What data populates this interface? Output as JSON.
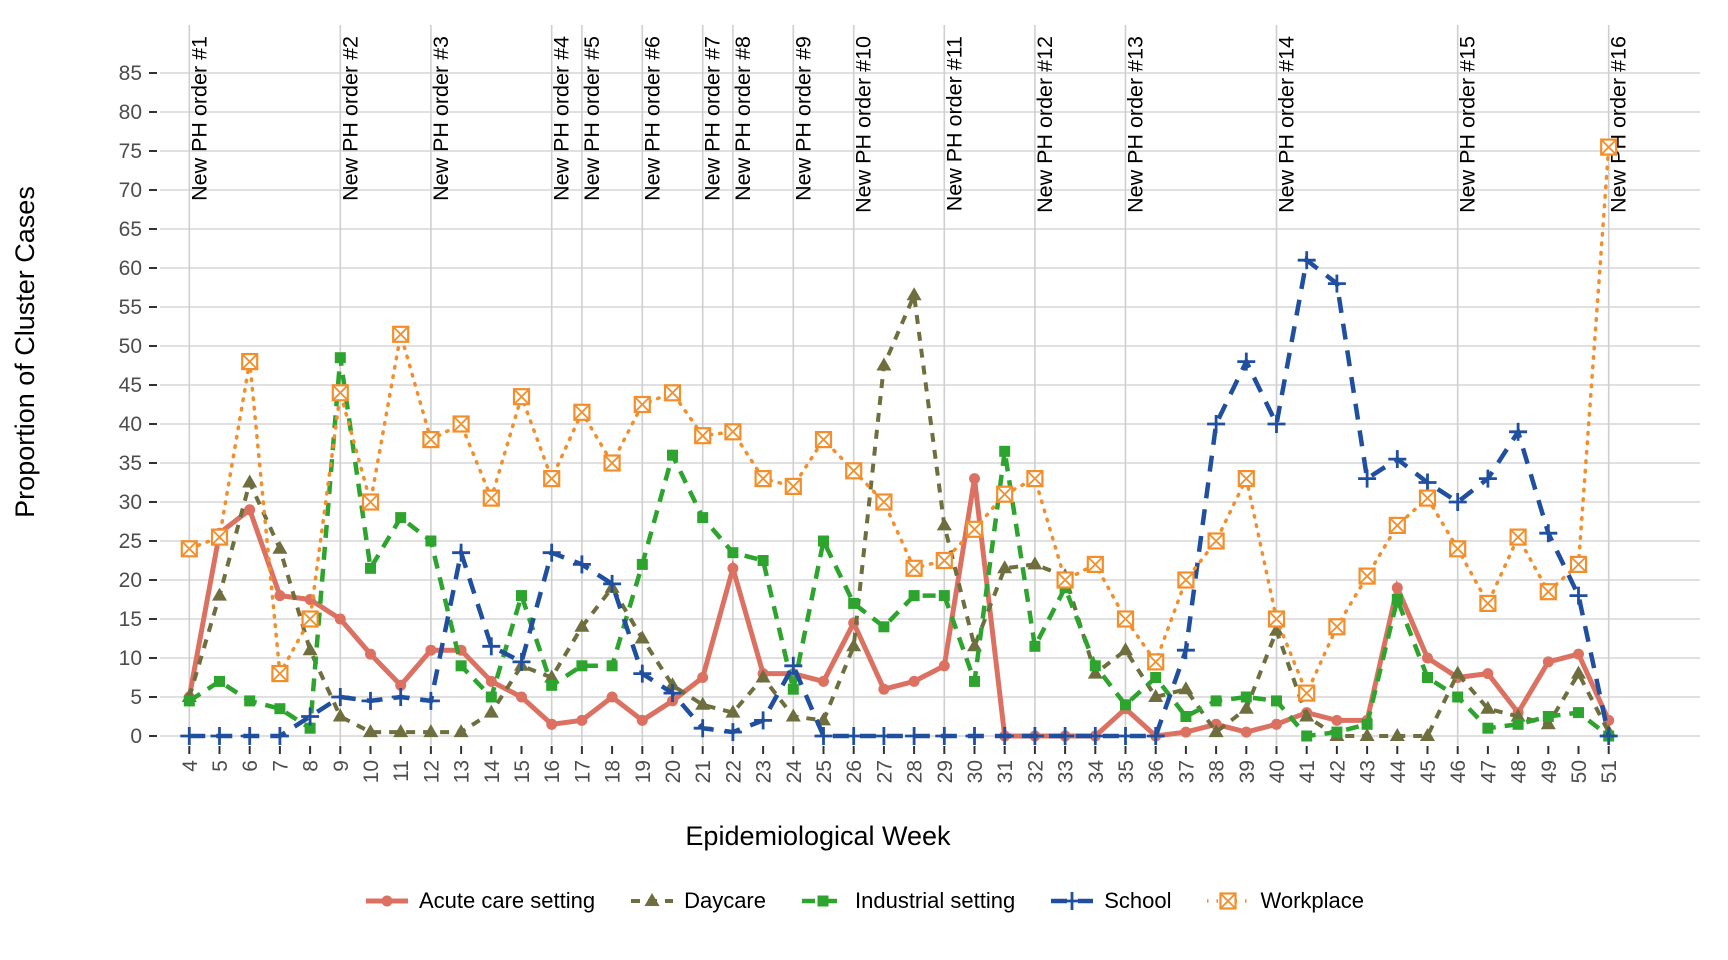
{
  "chart_data": {
    "type": "line",
    "title": "",
    "xlabel": "Epidemiological Week",
    "ylabel": "Proportion of Cluster Cases",
    "x_weeks": [
      4,
      5,
      6,
      7,
      8,
      9,
      10,
      11,
      12,
      13,
      14,
      15,
      16,
      17,
      18,
      19,
      20,
      21,
      22,
      23,
      24,
      25,
      26,
      27,
      28,
      29,
      30,
      31,
      32,
      33,
      34,
      35,
      36,
      37,
      38,
      39,
      40,
      41,
      42,
      43,
      44,
      45,
      46,
      47,
      48,
      49,
      50,
      51
    ],
    "ylim": [
      0,
      85
    ],
    "ytick_step": 5,
    "grid": "horizontal-major-on, vertical-only-at-event-lines",
    "legend_position": "bottom-center",
    "axis_text_color": "#4d4d4d",
    "grid_color": "#d6d6d6",
    "event_lines": {
      "weeks": [
        4,
        9,
        12,
        16,
        17,
        19,
        21,
        22,
        24,
        26,
        29,
        32,
        35,
        40,
        46,
        51
      ],
      "labels": [
        "New PH order #1",
        "New PH order #2",
        "New PH order #3",
        "New PH order #4",
        "New PH order #5",
        "New PH order #6",
        "New PH order #7",
        "New PH order #8",
        "New PH order #9",
        "New PH order #10",
        "New PH order #11",
        "New PH order #12",
        "New PH order #13",
        "New PH order #14",
        "New PH order #15",
        "New PH order #16"
      ]
    },
    "series": [
      {
        "name": "Acute care setting",
        "color": "#DC7162",
        "linestyle": "solid",
        "marker": "circle",
        "values": [
          5,
          26,
          29,
          18,
          17.5,
          15,
          10.5,
          6.5,
          11,
          11,
          7,
          5,
          1.5,
          2,
          5,
          2,
          4.5,
          7.5,
          21.5,
          8,
          8,
          7,
          14.5,
          6,
          7,
          9,
          33,
          0,
          0,
          0,
          0,
          3.5,
          0,
          0.5,
          1.5,
          0.5,
          1.5,
          3,
          2,
          2,
          19,
          10,
          7.5,
          8,
          3,
          9.5,
          10.5,
          2
        ]
      },
      {
        "name": "Daycare",
        "color": "#6E6E3E",
        "linestyle": "dashed",
        "marker": "triangle",
        "values": [
          5,
          18,
          32.5,
          24,
          11,
          2.5,
          0.5,
          0.5,
          0.5,
          0.5,
          3,
          9,
          7.5,
          14,
          19,
          12.5,
          6.5,
          4,
          3,
          7.5,
          2.5,
          2,
          11.5,
          47.5,
          56.5,
          27,
          11.5,
          21.5,
          22,
          20.5,
          8,
          11,
          5,
          6,
          0.5,
          3.5,
          13.5,
          2.5,
          0,
          0,
          0,
          0,
          8,
          3.5,
          2.5,
          1.5,
          8,
          0.5
        ]
      },
      {
        "name": "Industrial setting",
        "color": "#2DA42D",
        "linestyle": "dashed-long",
        "marker": "square",
        "values": [
          4.5,
          7,
          4.5,
          3.5,
          1,
          48.5,
          21.5,
          28,
          25,
          9,
          5,
          18,
          6.5,
          9,
          9,
          22,
          36,
          28,
          23.5,
          22.5,
          6,
          25,
          17,
          14,
          18,
          18,
          7,
          36.5,
          11.5,
          19,
          9,
          4,
          7.5,
          2.5,
          4.5,
          5,
          4.5,
          0,
          0.5,
          1.5,
          17.5,
          7.5,
          5,
          1,
          1.5,
          2.5,
          3,
          0
        ]
      },
      {
        "name": "School",
        "color": "#1F4F9E",
        "linestyle": "longdash",
        "marker": "plus",
        "values": [
          0,
          0,
          0,
          0,
          2.5,
          5,
          4.5,
          5,
          4.5,
          23.5,
          11.5,
          9.5,
          23.5,
          22,
          19.5,
          8,
          5.5,
          1,
          0.5,
          2,
          9,
          0,
          0,
          0,
          0,
          0,
          0,
          0,
          0,
          0,
          0,
          0,
          0,
          11,
          40,
          48,
          40,
          61,
          58,
          33,
          35.5,
          32.5,
          30,
          33,
          39,
          26,
          18,
          0
        ]
      },
      {
        "name": "Workplace",
        "color": "#F28E2B",
        "linestyle": "dotted",
        "marker": "crossed-square",
        "values": [
          24,
          25.5,
          48,
          8,
          15,
          44,
          30,
          51.5,
          38,
          40,
          30.5,
          43.5,
          33,
          41.5,
          35,
          42.5,
          44,
          38.5,
          39,
          33,
          32,
          38,
          34,
          30,
          21.5,
          22.5,
          26.5,
          31,
          33,
          20,
          22,
          15,
          9.5,
          20,
          25,
          33,
          15,
          5.5,
          14,
          20.5,
          27,
          30.5,
          24,
          17,
          25.5,
          18.5,
          22,
          75.5
        ]
      }
    ]
  }
}
